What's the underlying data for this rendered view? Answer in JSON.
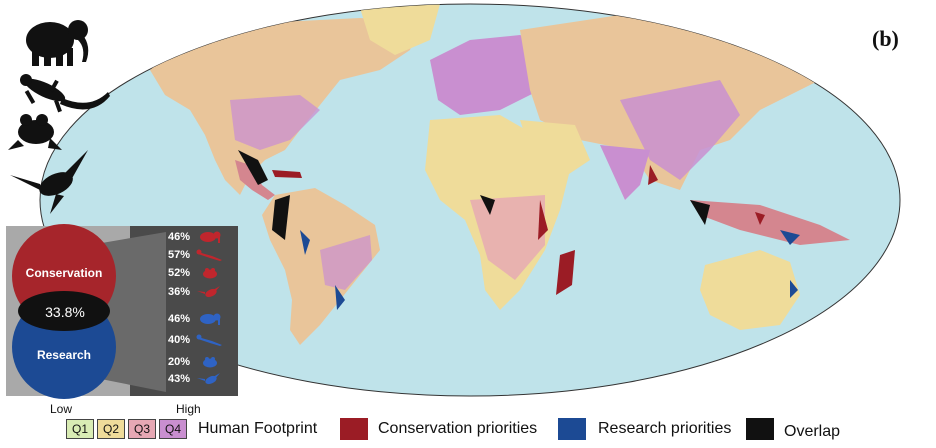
{
  "figure": {
    "panel_label": "(b)",
    "colors": {
      "ocean": "#bfe3ea",
      "q1": "#d9ecb4",
      "q2": "#efdc9a",
      "q3": "#e6a8b4",
      "q4": "#c98fd0",
      "conservation": "#9b1c25",
      "research": "#1c4a94",
      "overlap": "#111111"
    }
  },
  "silhouettes": [
    {
      "name": "elephant-icon"
    },
    {
      "name": "gecko-icon"
    },
    {
      "name": "frog-icon"
    },
    {
      "name": "hummingbird-icon"
    }
  ],
  "inset": {
    "venn": {
      "conservation_label": "Conservation",
      "research_label": "Research",
      "overlap_value": "33.8%"
    },
    "conservation_rows": [
      {
        "value": "46%",
        "taxon": "mammal",
        "icon": "elephant-icon"
      },
      {
        "value": "57%",
        "taxon": "reptile",
        "icon": "gecko-icon"
      },
      {
        "value": "52%",
        "taxon": "amphibian",
        "icon": "frog-icon"
      },
      {
        "value": "36%",
        "taxon": "bird",
        "icon": "hummingbird-icon"
      }
    ],
    "research_rows": [
      {
        "value": "46%",
        "taxon": "mammal",
        "icon": "elephant-icon"
      },
      {
        "value": "40%",
        "taxon": "reptile",
        "icon": "gecko-icon"
      },
      {
        "value": "20%",
        "taxon": "amphibian",
        "icon": "frog-icon"
      },
      {
        "value": "43%",
        "taxon": "bird",
        "icon": "hummingbird-icon"
      }
    ]
  },
  "legend": {
    "scale_low": "Low",
    "scale_high": "High",
    "quartiles": [
      "Q1",
      "Q2",
      "Q3",
      "Q4"
    ],
    "footprint_label": "Human Footprint",
    "conservation_label": "Conservation priorities",
    "research_label": "Research priorities",
    "overlap_label": "Overlap"
  }
}
